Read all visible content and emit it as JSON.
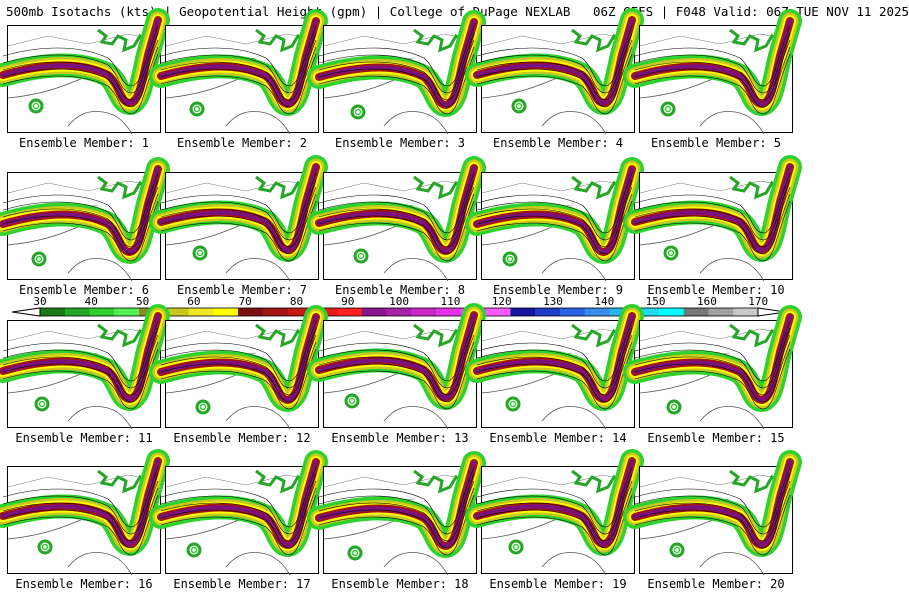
{
  "header": {
    "title": "500mb Isotachs (kts) | Geopotential Height (gpm) | College of DuPage NEXLAB   06Z GEFS | F048 Valid: 06Z TUE NOV 11 2025"
  },
  "members": [
    {
      "caption": "Ensemble Member: 1"
    },
    {
      "caption": "Ensemble Member: 2"
    },
    {
      "caption": "Ensemble Member: 3"
    },
    {
      "caption": "Ensemble Member: 4"
    },
    {
      "caption": "Ensemble Member: 5"
    },
    {
      "caption": "Ensemble Member: 6"
    },
    {
      "caption": "Ensemble Member: 7"
    },
    {
      "caption": "Ensemble Member: 8"
    },
    {
      "caption": "Ensemble Member: 9"
    },
    {
      "caption": "Ensemble Member: 10"
    },
    {
      "caption": "Ensemble Member: 11"
    },
    {
      "caption": "Ensemble Member: 12"
    },
    {
      "caption": "Ensemble Member: 13"
    },
    {
      "caption": "Ensemble Member: 14"
    },
    {
      "caption": "Ensemble Member: 15"
    },
    {
      "caption": "Ensemble Member: 16"
    },
    {
      "caption": "Ensemble Member: 17"
    },
    {
      "caption": "Ensemble Member: 18"
    },
    {
      "caption": "Ensemble Member: 19"
    },
    {
      "caption": "Ensemble Member: 20"
    }
  ],
  "colorbar": {
    "labels": [
      "30",
      "40",
      "50",
      "60",
      "70",
      "80",
      "90",
      "100",
      "110",
      "120",
      "130",
      "140",
      "150",
      "160",
      "170"
    ],
    "colors": [
      "#1a7a1a",
      "#26a626",
      "#2ed22e",
      "#52f052",
      "#8c8c2e",
      "#c8c81e",
      "#f0e628",
      "#ffff00",
      "#7a1010",
      "#a01414",
      "#c81818",
      "#e61c1c",
      "#ff2020",
      "#8c148c",
      "#aa1eaa",
      "#c828c8",
      "#e632e6",
      "#ff3cff",
      "#ff5aff",
      "#1414a0",
      "#1e3cc8",
      "#2864e6",
      "#3c8cf0",
      "#28b4f0",
      "#1edcf0",
      "#00ffff",
      "#787878",
      "#a0a0a0",
      "#c8c8c8"
    ]
  },
  "jet_colors": [
    "#2ed22e",
    "#c8c81e",
    "#ffff00",
    "#a01414",
    "#7a1080"
  ]
}
